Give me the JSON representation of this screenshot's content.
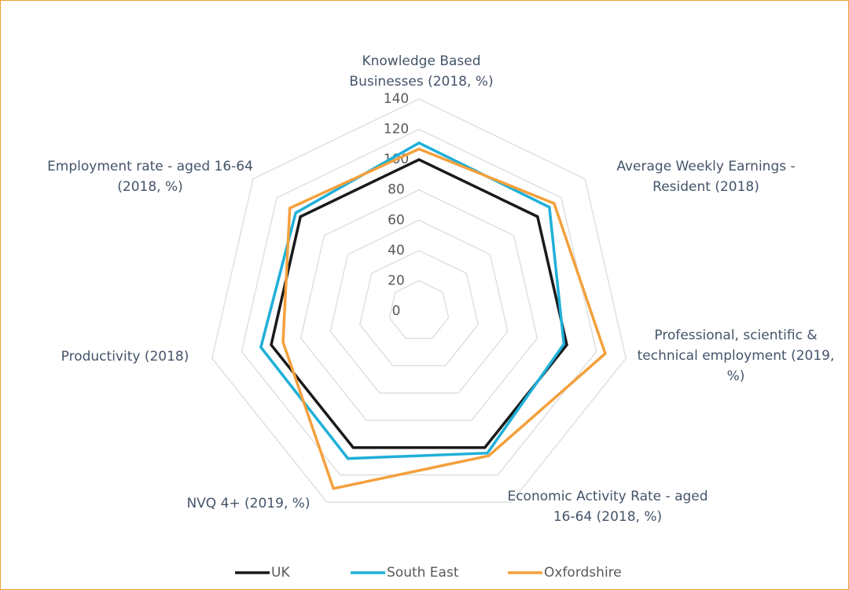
{
  "chart_data": {
    "type": "radar",
    "categories": [
      "Knowledge Based Businesses (2018, %)",
      "Average Weekly Earnings - Resident (2018)",
      "Professional, scientific & technical employment (2019, %)",
      "Economic Activity Rate - aged 16-64 (2018, %)",
      "NVQ 4+ (2019, %)",
      "Productivity (2018)",
      "Employment rate - aged 16-64 (2018, %)"
    ],
    "series": [
      {
        "name": "UK",
        "color": "#1a1a1a",
        "values": [
          100,
          100,
          100,
          100,
          100,
          100,
          100
        ]
      },
      {
        "name": "South East",
        "color": "#1fb0d8",
        "values": [
          111,
          110,
          98,
          104,
          108,
          107,
          104
        ]
      },
      {
        "name": "Oxfordshire",
        "color": "#f4a03c",
        "values": [
          107,
          114,
          126,
          106,
          130,
          92,
          109
        ]
      }
    ],
    "ylim": [
      0,
      140
    ],
    "yticks": [
      0,
      20,
      40,
      60,
      80,
      100,
      120,
      140
    ],
    "grid": true,
    "legend": "bottom"
  }
}
